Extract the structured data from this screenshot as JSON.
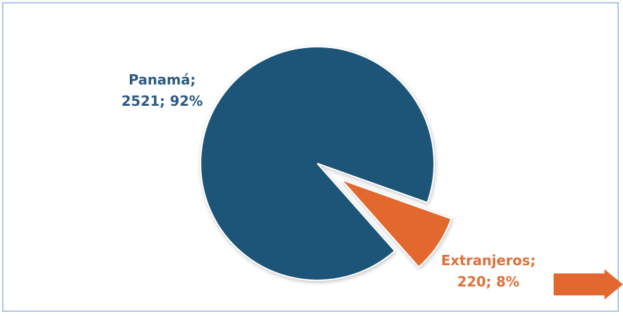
{
  "chart_data": {
    "type": "pie",
    "title": "",
    "slices": [
      {
        "label": "Panamá",
        "value": 2521,
        "percent": "92%",
        "color": "#1a5577"
      },
      {
        "label": "Extranjeros",
        "value": 220,
        "percent": "8%",
        "color": "#e2682f"
      }
    ],
    "exploded_slice": "Extranjeros",
    "labels": {
      "panama_line1": "Panamá;",
      "panama_line2": "2521; 92%",
      "extranjeros_line1": "Extranjeros;",
      "extranjeros_line2": "220; 8%"
    }
  },
  "decorations": {
    "arrow_icon": "right-arrow-icon",
    "arrow_color": "#e2682f",
    "frame_border_color": "#a9c6e4"
  }
}
